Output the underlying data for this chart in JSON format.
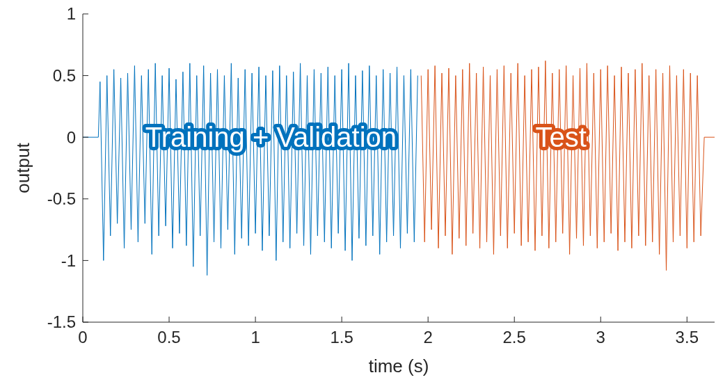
{
  "chart_data": {
    "type": "line",
    "xlabel": "time (s)",
    "ylabel": "output",
    "xlim": [
      0,
      3.66
    ],
    "ylim": [
      -1.5,
      1
    ],
    "xticks": [
      0,
      0.5,
      1,
      1.5,
      2,
      2.5,
      3,
      3.5
    ],
    "yticks": [
      -1.5,
      -1,
      -0.5,
      0,
      0.5,
      1
    ],
    "grid": false,
    "line_style": "solid",
    "marker": "none",
    "annotations": [
      {
        "text": "Training + Validation",
        "x": 1.09,
        "y": 0
      },
      {
        "text": "Test",
        "x": 2.77,
        "y": 0
      }
    ],
    "series": [
      {
        "color": "#0072bd",
        "x": [
          0,
          0.09,
          0.1,
          0.12,
          0.14,
          0.16,
          0.18,
          0.2,
          0.22,
          0.24,
          0.26,
          0.28,
          0.3,
          0.32,
          0.34,
          0.36,
          0.38,
          0.4,
          0.42,
          0.44,
          0.46,
          0.48,
          0.5,
          0.52,
          0.54,
          0.56,
          0.58,
          0.6,
          0.62,
          0.64,
          0.66,
          0.68,
          0.7,
          0.72,
          0.74,
          0.76,
          0.78,
          0.8,
          0.82,
          0.84,
          0.86,
          0.88,
          0.9,
          0.92,
          0.94,
          0.96,
          0.98,
          1,
          1.02,
          1.04,
          1.06,
          1.08,
          1.1,
          1.12,
          1.14,
          1.16,
          1.18,
          1.2,
          1.22,
          1.24,
          1.26,
          1.28,
          1.3,
          1.32,
          1.34,
          1.36,
          1.38,
          1.4,
          1.42,
          1.44,
          1.46,
          1.48,
          1.5,
          1.52,
          1.54,
          1.56,
          1.58,
          1.6,
          1.62,
          1.64,
          1.66,
          1.68,
          1.7,
          1.72,
          1.74,
          1.76,
          1.78,
          1.8,
          1.82,
          1.84,
          1.86,
          1.88,
          1.9,
          1.92,
          1.94
        ],
        "values": [
          0,
          0,
          0.45,
          -1.0,
          0.5,
          -0.8,
          0.55,
          -0.7,
          0.48,
          -0.9,
          0.52,
          -0.75,
          0.58,
          -0.85,
          0.5,
          -0.7,
          0.55,
          -0.95,
          0.6,
          -0.8,
          0.5,
          -0.72,
          0.56,
          -0.9,
          0.47,
          -0.78,
          0.53,
          -0.88,
          0.6,
          -1.05,
          0.5,
          -0.8,
          0.58,
          -1.12,
          0.52,
          -0.85,
          0.55,
          -0.9,
          0.5,
          -0.75,
          0.6,
          -0.95,
          0.48,
          -0.82,
          0.55,
          -0.88,
          0.52,
          -0.78,
          0.57,
          -0.92,
          0.5,
          -0.8,
          0.54,
          -1.0,
          0.58,
          -0.85,
          0.5,
          -0.9,
          0.53,
          -0.78,
          0.6,
          -0.88,
          0.5,
          -0.95,
          0.55,
          -0.8,
          0.52,
          -0.85,
          0.57,
          -0.9,
          0.5,
          -0.78,
          0.55,
          -0.92,
          0.6,
          -1.0,
          0.5,
          -0.82,
          0.54,
          -0.88,
          0.58,
          -0.8,
          0.5,
          -0.95,
          0.55,
          -0.85,
          0.52,
          -0.8,
          0.57,
          -0.9,
          0.5,
          -0.78,
          0.55,
          -0.85,
          0.5
        ]
      },
      {
        "color": "#d95319",
        "x": [
          1.96,
          1.98,
          2,
          2.02,
          2.04,
          2.06,
          2.08,
          2.1,
          2.12,
          2.14,
          2.16,
          2.18,
          2.2,
          2.22,
          2.24,
          2.26,
          2.28,
          2.3,
          2.32,
          2.34,
          2.36,
          2.38,
          2.4,
          2.42,
          2.44,
          2.46,
          2.48,
          2.5,
          2.52,
          2.54,
          2.56,
          2.58,
          2.6,
          2.62,
          2.64,
          2.66,
          2.68,
          2.7,
          2.72,
          2.74,
          2.76,
          2.78,
          2.8,
          2.82,
          2.84,
          2.86,
          2.88,
          2.9,
          2.92,
          2.94,
          2.96,
          2.98,
          3,
          3.02,
          3.04,
          3.06,
          3.08,
          3.1,
          3.12,
          3.14,
          3.16,
          3.18,
          3.2,
          3.22,
          3.24,
          3.26,
          3.28,
          3.3,
          3.32,
          3.34,
          3.36,
          3.38,
          3.4,
          3.42,
          3.44,
          3.46,
          3.48,
          3.5,
          3.52,
          3.54,
          3.56,
          3.58,
          3.6,
          3.66
        ],
        "values": [
          0.5,
          -0.85,
          0.55,
          -0.75,
          0.58,
          -0.9,
          0.52,
          -0.8,
          0.56,
          -0.95,
          0.5,
          -0.82,
          0.55,
          -0.88,
          0.6,
          -0.78,
          0.52,
          -0.9,
          0.57,
          -0.85,
          0.5,
          -0.95,
          0.55,
          -0.8,
          0.58,
          -0.9,
          0.52,
          -0.78,
          0.6,
          -0.88,
          0.5,
          -0.85,
          0.55,
          -0.92,
          0.57,
          -0.8,
          0.62,
          -0.9,
          0.52,
          -0.85,
          0.55,
          -0.78,
          0.58,
          -0.95,
          0.5,
          -0.82,
          0.56,
          -0.88,
          0.6,
          -0.8,
          0.52,
          -0.9,
          0.55,
          -0.85,
          0.58,
          -0.78,
          0.5,
          -0.92,
          0.57,
          -0.85,
          0.52,
          -0.9,
          0.55,
          -0.8,
          0.6,
          -0.88,
          0.5,
          -0.85,
          0.55,
          -0.95,
          0.52,
          -1.08,
          0.58,
          -0.85,
          0.5,
          -0.8,
          0.55,
          -0.9,
          0.52,
          -0.85,
          0.5,
          -0.8,
          0,
          0
        ]
      }
    ]
  }
}
